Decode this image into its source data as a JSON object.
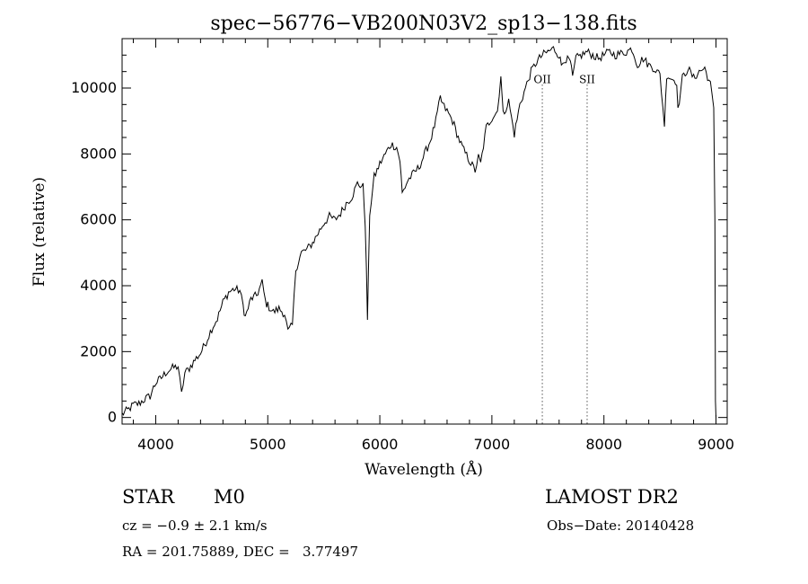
{
  "chart_data": {
    "type": "line",
    "title": "spec−56776−VB200N03V2_sp13−138.fits",
    "xlabel": "Wavelength (Å)",
    "ylabel": "Flux (relative)",
    "xlim": [
      3700,
      9100
    ],
    "ylim": [
      -200,
      11500
    ],
    "xticks": [
      4000,
      5000,
      6000,
      7000,
      8000,
      9000
    ],
    "yticks": [
      0,
      2000,
      4000,
      6000,
      8000,
      10000
    ],
    "grid": false,
    "line_color": "#000000",
    "series": [
      {
        "points": [
          [
            3700,
            100
          ],
          [
            3760,
            250
          ],
          [
            3800,
            380
          ],
          [
            3850,
            420
          ],
          [
            3900,
            550
          ],
          [
            3950,
            650
          ],
          [
            3980,
            900
          ],
          [
            4000,
            1050
          ],
          [
            4050,
            1200
          ],
          [
            4100,
            1400
          ],
          [
            4150,
            1500
          ],
          [
            4200,
            1550
          ],
          [
            4230,
            700
          ],
          [
            4260,
            1350
          ],
          [
            4300,
            1500
          ],
          [
            4350,
            1750
          ],
          [
            4400,
            1950
          ],
          [
            4450,
            2300
          ],
          [
            4500,
            2700
          ],
          [
            4550,
            3000
          ],
          [
            4600,
            3500
          ],
          [
            4650,
            3800
          ],
          [
            4700,
            3900
          ],
          [
            4750,
            3850
          ],
          [
            4780,
            3400
          ],
          [
            4800,
            3050
          ],
          [
            4850,
            3600
          ],
          [
            4900,
            3700
          ],
          [
            4950,
            4100
          ],
          [
            4980,
            3500
          ],
          [
            5000,
            3400
          ],
          [
            5050,
            3200
          ],
          [
            5100,
            3300
          ],
          [
            5150,
            3150
          ],
          [
            5180,
            2600
          ],
          [
            5220,
            2800
          ],
          [
            5250,
            4500
          ],
          [
            5300,
            5000
          ],
          [
            5350,
            5100
          ],
          [
            5400,
            5300
          ],
          [
            5450,
            5600
          ],
          [
            5500,
            5900
          ],
          [
            5550,
            6100
          ],
          [
            5600,
            6000
          ],
          [
            5650,
            6200
          ],
          [
            5700,
            6500
          ],
          [
            5750,
            6700
          ],
          [
            5800,
            7100
          ],
          [
            5850,
            7000
          ],
          [
            5870,
            5900
          ],
          [
            5890,
            3000
          ],
          [
            5910,
            6200
          ],
          [
            5950,
            7300
          ],
          [
            6000,
            7700
          ],
          [
            6050,
            8000
          ],
          [
            6100,
            8300
          ],
          [
            6150,
            8200
          ],
          [
            6180,
            7800
          ],
          [
            6200,
            6800
          ],
          [
            6250,
            7200
          ],
          [
            6300,
            7400
          ],
          [
            6350,
            7600
          ],
          [
            6400,
            8000
          ],
          [
            6450,
            8400
          ],
          [
            6500,
            9000
          ],
          [
            6540,
            9700
          ],
          [
            6560,
            9500
          ],
          [
            6600,
            9300
          ],
          [
            6650,
            9000
          ],
          [
            6700,
            8500
          ],
          [
            6750,
            8100
          ],
          [
            6800,
            7800
          ],
          [
            6850,
            7500
          ],
          [
            6880,
            7900
          ],
          [
            6900,
            7700
          ],
          [
            6950,
            8800
          ],
          [
            7000,
            9100
          ],
          [
            7050,
            9300
          ],
          [
            7080,
            10400
          ],
          [
            7100,
            9200
          ],
          [
            7150,
            9600
          ],
          [
            7200,
            8600
          ],
          [
            7250,
            9500
          ],
          [
            7300,
            10000
          ],
          [
            7350,
            10500
          ],
          [
            7400,
            10800
          ],
          [
            7450,
            11000
          ],
          [
            7500,
            11100
          ],
          [
            7550,
            11200
          ],
          [
            7600,
            11000
          ],
          [
            7620,
            10700
          ],
          [
            7650,
            10900
          ],
          [
            7700,
            10800
          ],
          [
            7720,
            10300
          ],
          [
            7750,
            10900
          ],
          [
            7800,
            11000
          ],
          [
            7850,
            11100
          ],
          [
            7900,
            11000
          ],
          [
            7950,
            10900
          ],
          [
            8000,
            11000
          ],
          [
            8050,
            11100
          ],
          [
            8100,
            11000
          ],
          [
            8150,
            11050
          ],
          [
            8200,
            11100
          ],
          [
            8250,
            11200
          ],
          [
            8300,
            10700
          ],
          [
            8350,
            10900
          ],
          [
            8400,
            10700
          ],
          [
            8450,
            10600
          ],
          [
            8500,
            10400
          ],
          [
            8540,
            8900
          ],
          [
            8560,
            10400
          ],
          [
            8600,
            10300
          ],
          [
            8650,
            10200
          ],
          [
            8660,
            9300
          ],
          [
            8700,
            10300
          ],
          [
            8750,
            10600
          ],
          [
            8800,
            10300
          ],
          [
            8850,
            10500
          ],
          [
            8900,
            10600
          ],
          [
            8950,
            10100
          ],
          [
            8980,
            9400
          ],
          [
            8990,
            6000
          ],
          [
            8995,
            500
          ],
          [
            9000,
            0
          ]
        ]
      }
    ],
    "annotations": [
      {
        "label": "OII",
        "x": 7450
      },
      {
        "label": "SII",
        "x": 7850
      }
    ]
  },
  "info": {
    "object_type": "STAR",
    "subclass": "M0",
    "survey": "LAMOST DR2",
    "redshift": "cz = −0.9 ± 2.1 km/s",
    "obs_date": "Obs−Date: 20140428",
    "coords": "RA = 201.75889, DEC =   3.77497"
  }
}
